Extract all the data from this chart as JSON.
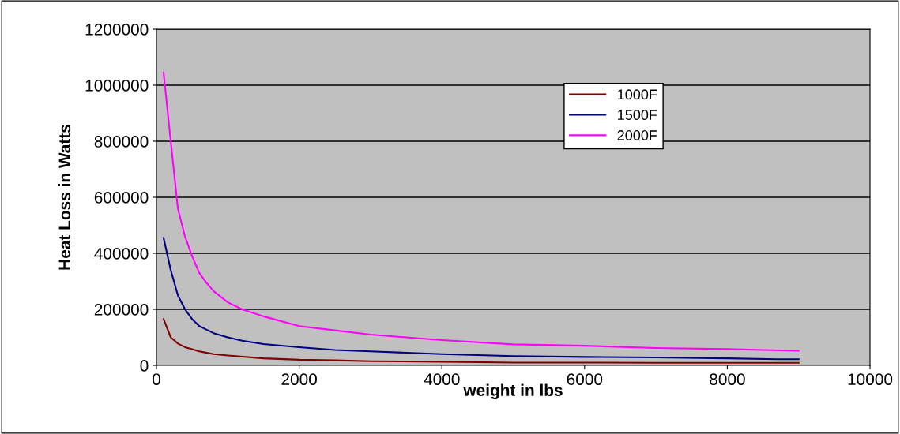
{
  "chart_data": {
    "type": "line",
    "xlabel": "weight in lbs",
    "ylabel": "Heat Loss in Watts",
    "xlim": [
      0,
      10000
    ],
    "xticks": [
      0,
      2000,
      4000,
      6000,
      8000,
      10000
    ],
    "ylim": [
      0,
      1200000
    ],
    "yticks": [
      0,
      200000,
      400000,
      600000,
      800000,
      1000000,
      1200000
    ],
    "grid": "y",
    "legend": "top right",
    "marker": "none",
    "line_style": "solid",
    "series": [
      {
        "name": "1000F",
        "color": "#800000",
        "x": [
          100,
          200,
          300,
          400,
          500,
          600,
          800,
          1000,
          1500,
          2000,
          2500,
          3000,
          4000,
          5000,
          6000,
          7000,
          8000,
          9000
        ],
        "values": [
          165000,
          100000,
          78000,
          65000,
          58000,
          50000,
          40000,
          35000,
          25000,
          20000,
          18000,
          15000,
          13000,
          10000,
          10000,
          9000,
          9000,
          9000
        ]
      },
      {
        "name": "1500F",
        "color": "#000080",
        "x": [
          100,
          200,
          300,
          400,
          500,
          600,
          800,
          1000,
          1200,
          1500,
          2000,
          2500,
          3000,
          3500,
          4000,
          5000,
          6000,
          7000,
          8000,
          8700,
          9000
        ],
        "values": [
          455000,
          340000,
          250000,
          200000,
          165000,
          140000,
          115000,
          100000,
          88000,
          76000,
          65000,
          55000,
          50000,
          45000,
          40000,
          33000,
          30000,
          28000,
          25000,
          22000,
          22000
        ]
      },
      {
        "name": "2000F",
        "color": "#ff00ff",
        "x": [
          100,
          200,
          300,
          400,
          500,
          600,
          700,
          800,
          1000,
          1200,
          1500,
          2000,
          2500,
          3000,
          3500,
          4000,
          5000,
          6000,
          7000,
          8000,
          8500,
          9000
        ],
        "values": [
          1045000,
          800000,
          560000,
          460000,
          390000,
          330000,
          295000,
          265000,
          225000,
          200000,
          175000,
          140000,
          125000,
          110000,
          100000,
          90000,
          75000,
          70000,
          62000,
          58000,
          55000,
          52000
        ]
      }
    ]
  }
}
